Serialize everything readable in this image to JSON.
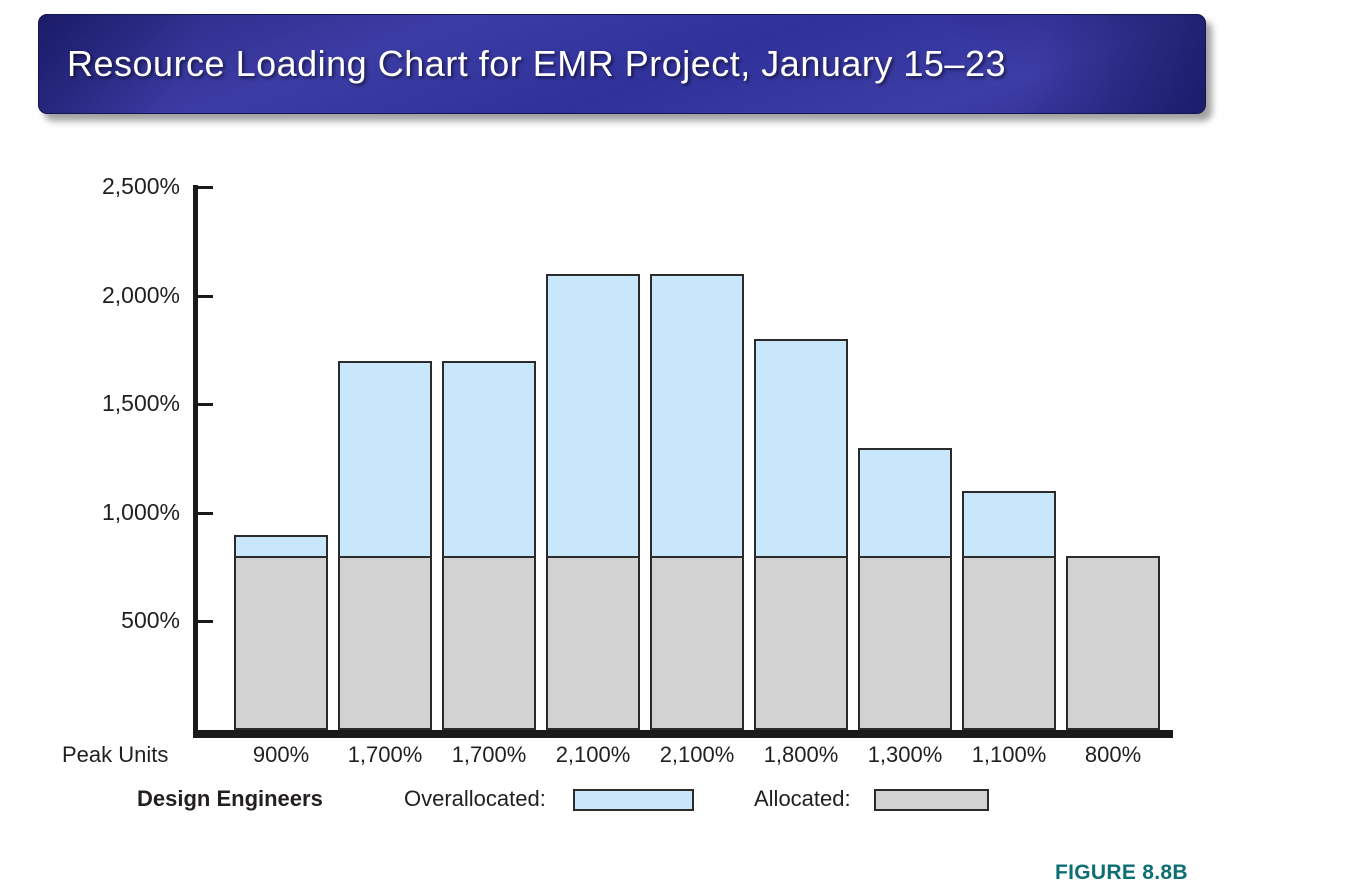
{
  "title": {
    "text": "Resource Loading Chart for EMR Project, January 15–23"
  },
  "chart_data": {
    "type": "bar",
    "stacked": true,
    "title": "Resource Loading Chart for EMR Project, January 15–23",
    "categories": [
      "900%",
      "1,700%",
      "1,700%",
      "2,100%",
      "2,100%",
      "1,800%",
      "1,300%",
      "1,100%",
      "800%"
    ],
    "series": [
      {
        "name": "Allocated",
        "color": "#d2d2d2",
        "values": [
          800,
          800,
          800,
          800,
          800,
          800,
          800,
          800,
          800
        ]
      },
      {
        "name": "Overallocated",
        "color": "#c8e7fa",
        "values": [
          100,
          900,
          900,
          1300,
          1300,
          1000,
          500,
          300,
          0
        ]
      }
    ],
    "totals": [
      900,
      1700,
      1700,
      2100,
      2100,
      1800,
      1300,
      1100,
      800
    ],
    "y_ticks": [
      "2,500%",
      "2,000%",
      "1,500%",
      "1,000%",
      "500%"
    ],
    "y_tick_values": [
      2500,
      2000,
      1500,
      1000,
      500
    ],
    "ylim": [
      0,
      2500
    ],
    "x_axis_label": "Peak Units",
    "grid": false,
    "legend_position": "bottom"
  },
  "axis": {
    "peak_units_label": "Peak Units"
  },
  "legend": {
    "group_label": "Design Engineers",
    "overallocated_label": "Overallocated:",
    "allocated_label": "Allocated:"
  },
  "figure_caption": {
    "text": "FIGURE 8.8B"
  },
  "colors": {
    "overallocated": "#c8e7fa",
    "allocated": "#d2d2d2",
    "bar_border": "#2b2b2b",
    "axis": "#1a1a1a",
    "title_background": "#34349a",
    "title_text": "#ffffff",
    "caption": "#0d6e73"
  }
}
